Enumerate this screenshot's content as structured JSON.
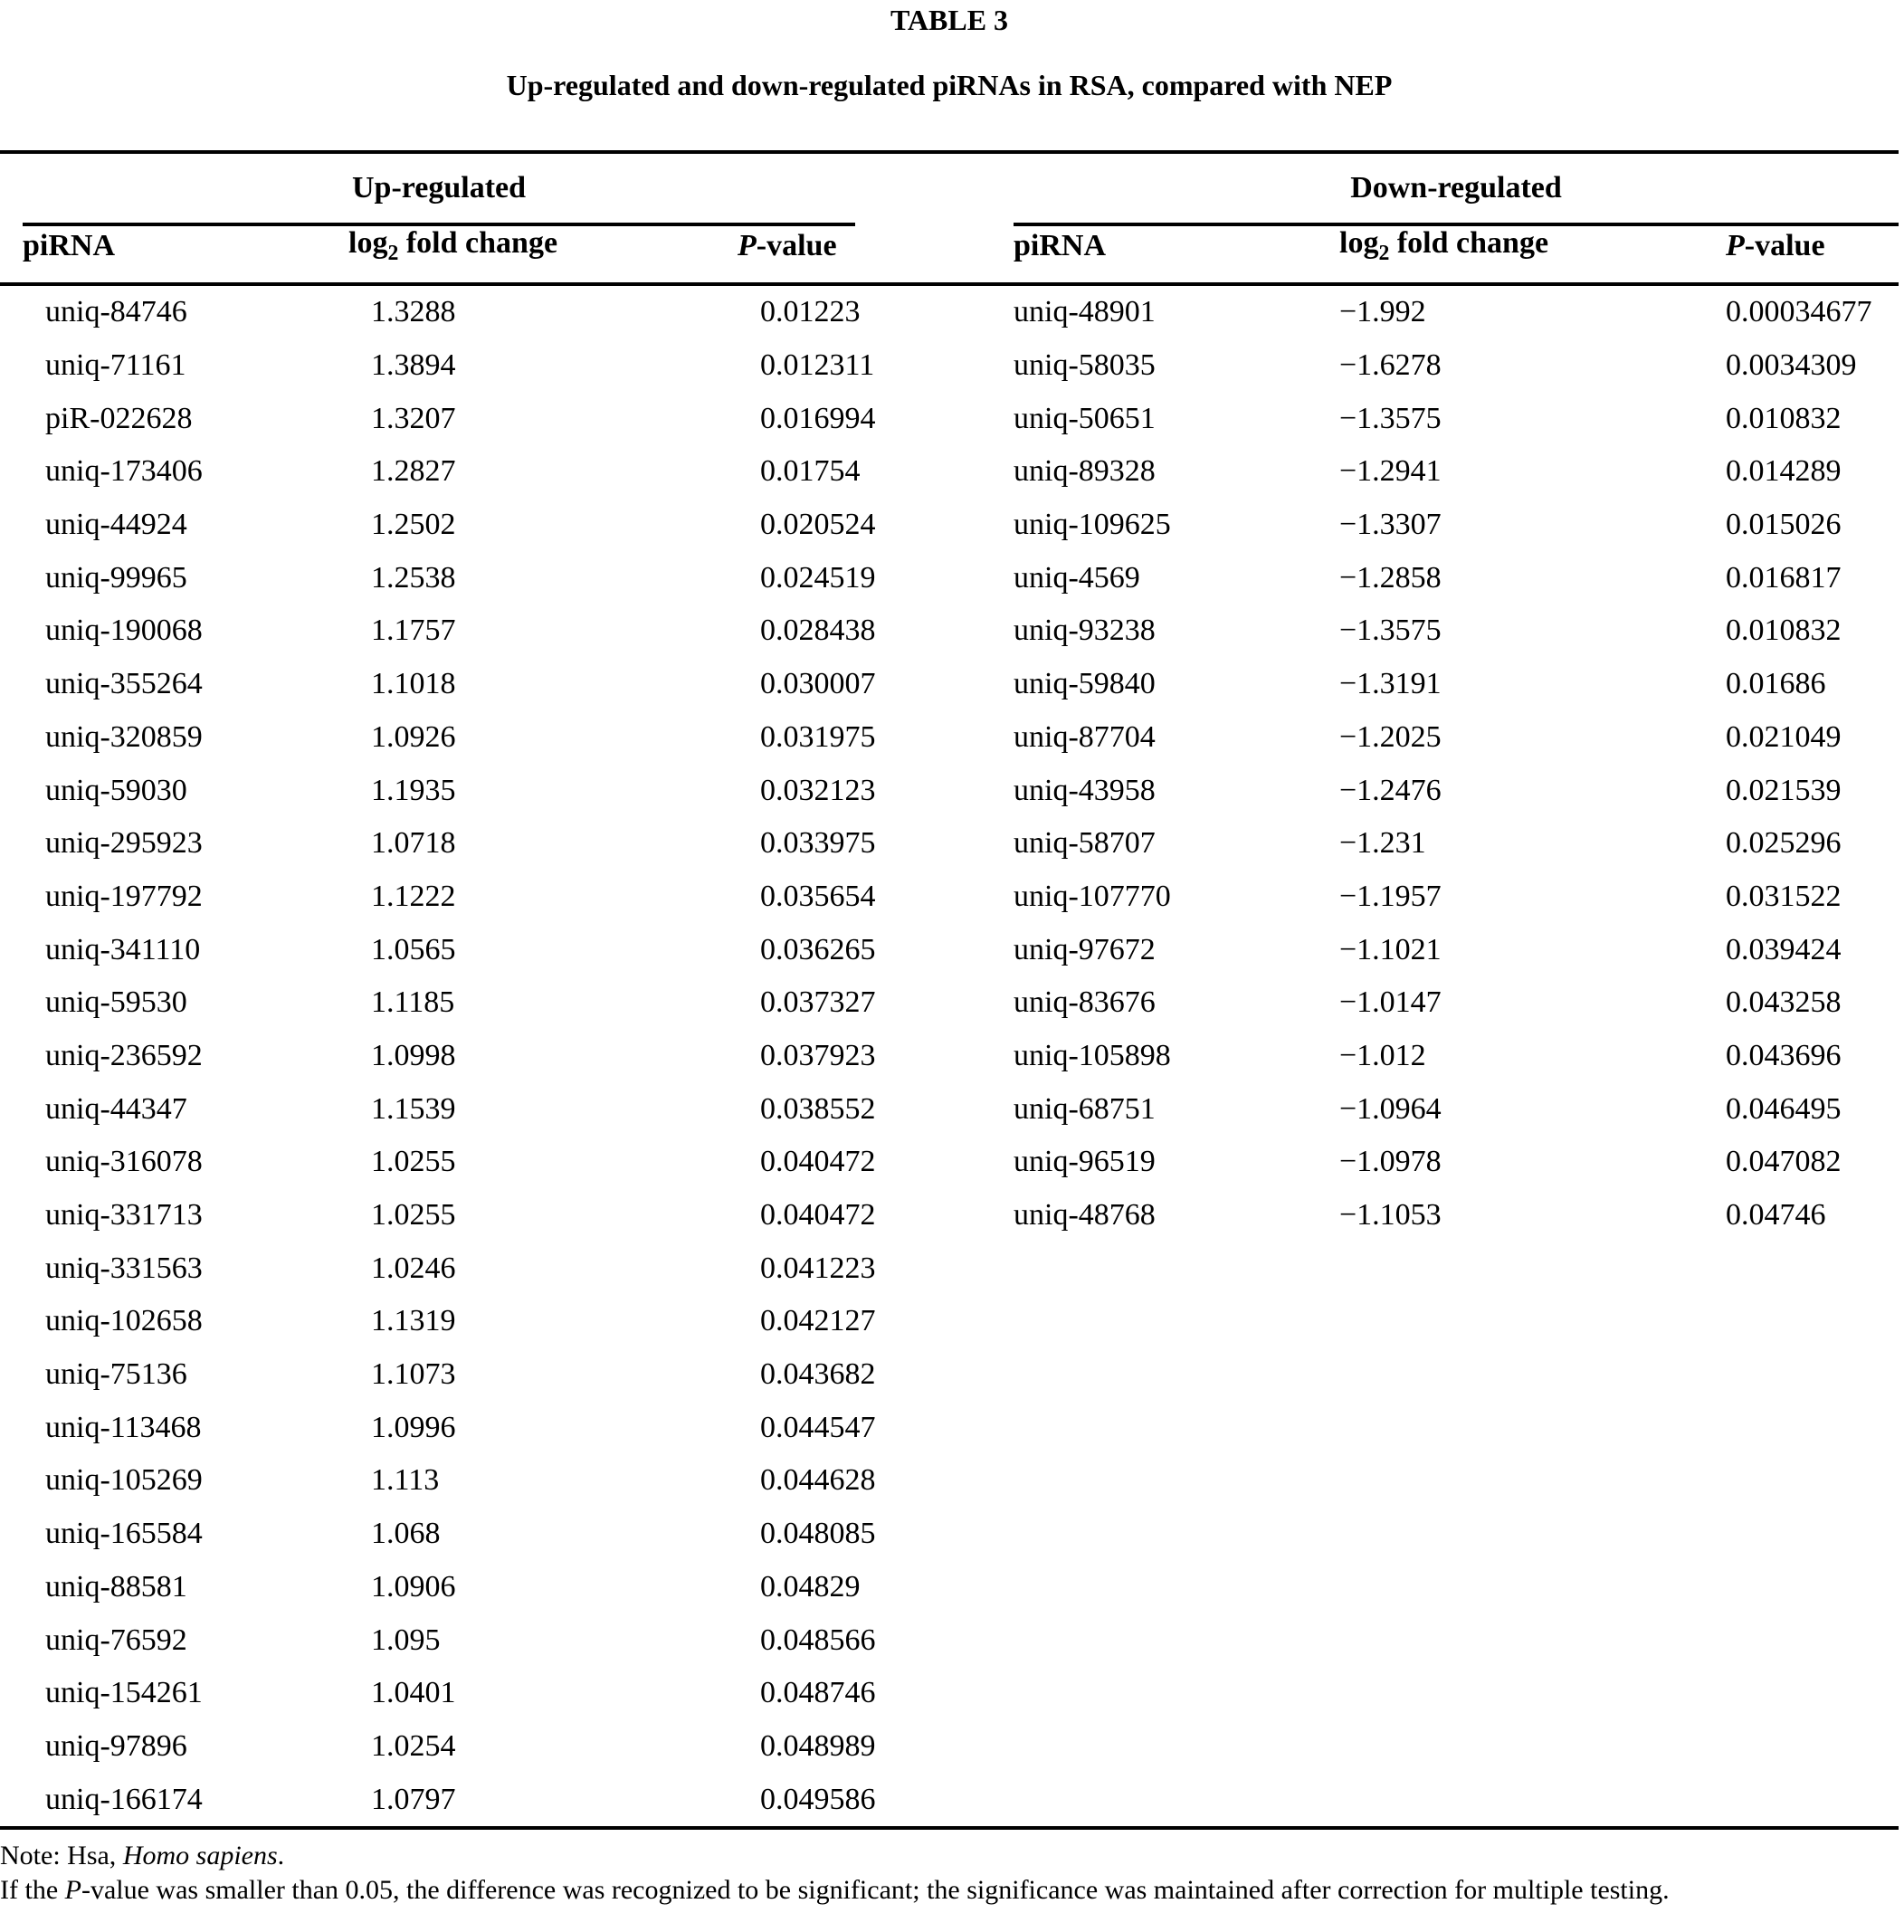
{
  "table_label": "TABLE 3",
  "title": "Up-regulated and down-regulated piRNAs in RSA, compared with NEP",
  "groups": {
    "up_label": "Up-regulated",
    "down_label": "Down-regulated"
  },
  "columns": {
    "pirna": "piRNA",
    "log2_prefix": "log",
    "log2_sub": "2",
    "log2_suffix": " fold change",
    "p_italic": "P",
    "p_suffix": "-value"
  },
  "colors": {
    "text": "#000000",
    "background": "#ffffff",
    "rule": "#000000"
  },
  "up_rows": [
    {
      "pirna": "uniq-84746",
      "fold": "1.3288",
      "p": "0.01223"
    },
    {
      "pirna": "uniq-71161",
      "fold": "1.3894",
      "p": "0.012311"
    },
    {
      "pirna": "piR-022628",
      "fold": "1.3207",
      "p": "0.016994"
    },
    {
      "pirna": "uniq-173406",
      "fold": "1.2827",
      "p": "0.01754"
    },
    {
      "pirna": "uniq-44924",
      "fold": "1.2502",
      "p": "0.020524"
    },
    {
      "pirna": "uniq-99965",
      "fold": "1.2538",
      "p": "0.024519"
    },
    {
      "pirna": "uniq-190068",
      "fold": "1.1757",
      "p": "0.028438"
    },
    {
      "pirna": "uniq-355264",
      "fold": "1.1018",
      "p": "0.030007"
    },
    {
      "pirna": "uniq-320859",
      "fold": "1.0926",
      "p": "0.031975"
    },
    {
      "pirna": "uniq-59030",
      "fold": "1.1935",
      "p": "0.032123"
    },
    {
      "pirna": "uniq-295923",
      "fold": "1.0718",
      "p": "0.033975"
    },
    {
      "pirna": "uniq-197792",
      "fold": "1.1222",
      "p": "0.035654"
    },
    {
      "pirna": "uniq-341110",
      "fold": "1.0565",
      "p": "0.036265"
    },
    {
      "pirna": "uniq-59530",
      "fold": "1.1185",
      "p": "0.037327"
    },
    {
      "pirna": "uniq-236592",
      "fold": "1.0998",
      "p": "0.037923"
    },
    {
      "pirna": "uniq-44347",
      "fold": "1.1539",
      "p": "0.038552"
    },
    {
      "pirna": "uniq-316078",
      "fold": "1.0255",
      "p": "0.040472"
    },
    {
      "pirna": "uniq-331713",
      "fold": "1.0255",
      "p": "0.040472"
    },
    {
      "pirna": "uniq-331563",
      "fold": "1.0246",
      "p": "0.041223"
    },
    {
      "pirna": "uniq-102658",
      "fold": "1.1319",
      "p": "0.042127"
    },
    {
      "pirna": "uniq-75136",
      "fold": "1.1073",
      "p": "0.043682"
    },
    {
      "pirna": "uniq-113468",
      "fold": "1.0996",
      "p": "0.044547"
    },
    {
      "pirna": "uniq-105269",
      "fold": "1.113",
      "p": "0.044628"
    },
    {
      "pirna": "uniq-165584",
      "fold": "1.068",
      "p": "0.048085"
    },
    {
      "pirna": "uniq-88581",
      "fold": "1.0906",
      "p": "0.04829"
    },
    {
      "pirna": "uniq-76592",
      "fold": "1.095",
      "p": "0.048566"
    },
    {
      "pirna": "uniq-154261",
      "fold": "1.0401",
      "p": "0.048746"
    },
    {
      "pirna": "uniq-97896",
      "fold": "1.0254",
      "p": "0.048989"
    },
    {
      "pirna": "uniq-166174",
      "fold": "1.0797",
      "p": "0.049586"
    }
  ],
  "down_rows": [
    {
      "pirna": "uniq-48901",
      "fold": "−1.992",
      "p": "0.00034677"
    },
    {
      "pirna": "uniq-58035",
      "fold": "−1.6278",
      "p": "0.0034309"
    },
    {
      "pirna": "uniq-50651",
      "fold": "−1.3575",
      "p": "0.010832"
    },
    {
      "pirna": "uniq-89328",
      "fold": "−1.2941",
      "p": "0.014289"
    },
    {
      "pirna": "uniq-109625",
      "fold": "−1.3307",
      "p": "0.015026"
    },
    {
      "pirna": "uniq-4569",
      "fold": "−1.2858",
      "p": "0.016817"
    },
    {
      "pirna": "uniq-93238",
      "fold": "−1.3575",
      "p": "0.010832"
    },
    {
      "pirna": "uniq-59840",
      "fold": "−1.3191",
      "p": "0.01686"
    },
    {
      "pirna": "uniq-87704",
      "fold": "−1.2025",
      "p": "0.021049"
    },
    {
      "pirna": "uniq-43958",
      "fold": "−1.2476",
      "p": "0.021539"
    },
    {
      "pirna": "uniq-58707",
      "fold": "−1.231",
      "p": "0.025296"
    },
    {
      "pirna": "uniq-107770",
      "fold": "−1.1957",
      "p": "0.031522"
    },
    {
      "pirna": "uniq-97672",
      "fold": "−1.1021",
      "p": "0.039424"
    },
    {
      "pirna": "uniq-83676",
      "fold": "−1.0147",
      "p": "0.043258"
    },
    {
      "pirna": "uniq-105898",
      "fold": "−1.012",
      "p": "0.043696"
    },
    {
      "pirna": "uniq-68751",
      "fold": "−1.0964",
      "p": "0.046495"
    },
    {
      "pirna": "uniq-96519",
      "fold": "−1.0978",
      "p": "0.047082"
    },
    {
      "pirna": "uniq-48768",
      "fold": "−1.1053",
      "p": "0.04746"
    }
  ],
  "note": {
    "prefix": "Note: Hsa, ",
    "italic": "Homo sapiens",
    "suffix": "."
  },
  "footnote": {
    "prefix": "If the ",
    "italic": "P",
    "suffix": "-value was smaller than 0.05, the difference was recognized to be significant; the significance was maintained after correction for multiple testing."
  }
}
